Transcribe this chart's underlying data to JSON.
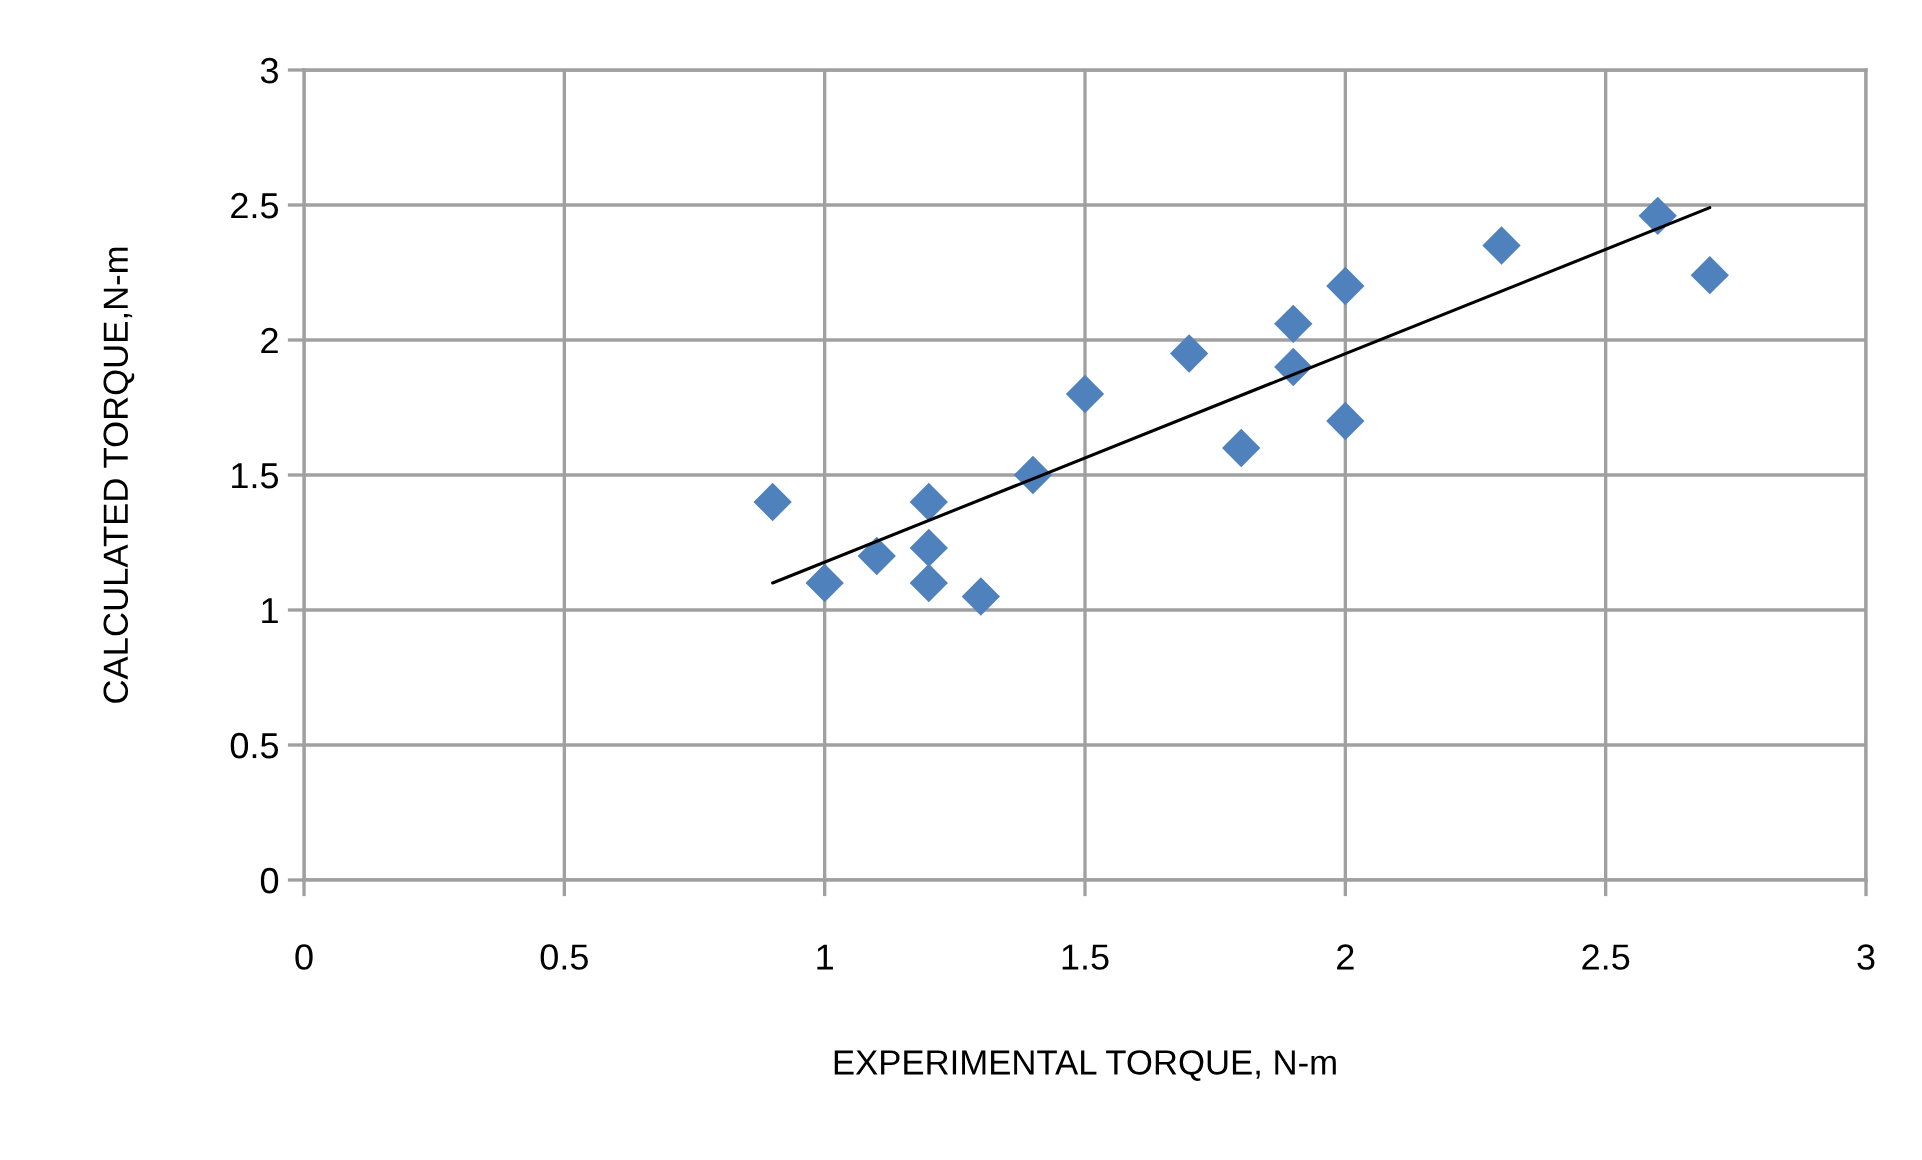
{
  "chart_data": {
    "type": "scatter",
    "xlabel": "EXPERIMENTAL TORQUE, N-m",
    "ylabel": "CALCULATED TORQUE,N-m",
    "xlim": [
      0,
      3
    ],
    "ylim": [
      0,
      3
    ],
    "xticks": [
      0,
      0.5,
      1,
      1.5,
      2,
      2.5,
      3
    ],
    "yticks": [
      0,
      0.5,
      1,
      1.5,
      2,
      2.5,
      3
    ],
    "grid": true,
    "series": [
      {
        "color": "#4f81bd",
        "marker": "diamond",
        "x": [
          0.9,
          1.0,
          1.1,
          1.2,
          1.2,
          1.2,
          1.3,
          1.4,
          1.5,
          1.7,
          1.8,
          1.9,
          1.9,
          2.0,
          2.0,
          2.3,
          2.6,
          2.7
        ],
        "values": [
          1.4,
          1.1,
          1.2,
          1.4,
          1.23,
          1.1,
          1.05,
          1.5,
          1.8,
          1.95,
          1.6,
          2.06,
          1.9,
          2.2,
          1.7,
          2.35,
          2.46,
          2.24
        ]
      },
      {
        "type": "line",
        "color": "#000000",
        "marker": "none",
        "line_style": "solid",
        "x": [
          0.9,
          2.7
        ],
        "values": [
          1.1,
          2.49
        ]
      }
    ]
  }
}
